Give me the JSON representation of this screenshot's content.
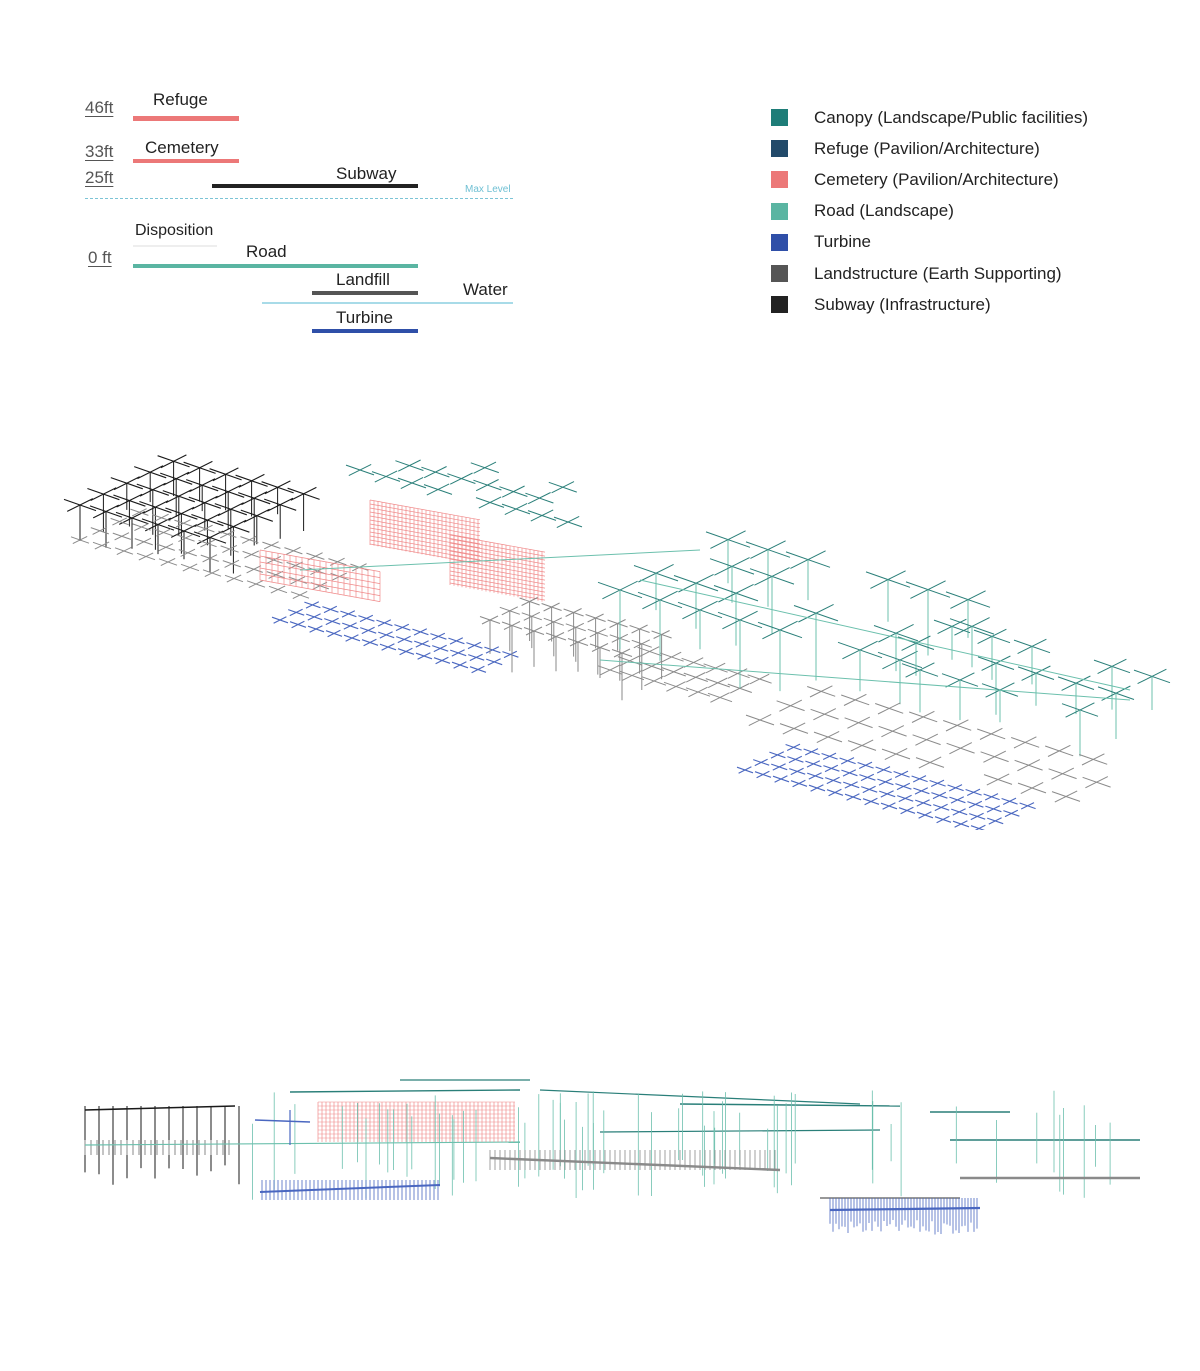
{
  "levels": {
    "l46": "46ft",
    "l33": "33ft",
    "l25": "25ft",
    "l0": "0 ft"
  },
  "bars": {
    "refuge": "Refuge",
    "cemetery": "Cemetery",
    "subway": "Subway",
    "disposition": "Disposition",
    "road": "Road",
    "landfill": "Landfill",
    "water": "Water",
    "turbine": "Turbine",
    "max_level": "Max Level"
  },
  "legend": [
    {
      "label": "Canopy (Landscape/Public facilities)",
      "color": "#1e7d78"
    },
    {
      "label": "Refuge (Pavilion/Architecture)",
      "color": "#224a6a"
    },
    {
      "label": "Cemetery (Pavilion/Architecture)",
      "color": "#ec7878"
    },
    {
      "label": "Road (Landscape)",
      "color": "#5ab5a2"
    },
    {
      "label": "Turbine",
      "color": "#2f4fa8"
    },
    {
      "label": "Landstructure (Earth Supporting)",
      "color": "#555555"
    },
    {
      "label": "Subway (Infrastructure)",
      "color": "#222222"
    }
  ],
  "colors": {
    "refuge_bar": "#ec7878",
    "cemetery_bar": "#ec7878",
    "subway_bar": "#222222",
    "road_bar": "#5ab5a2",
    "landfill_bar": "#555555",
    "water_bar": "#a8dbe8",
    "turbine_bar": "#2f4fa8",
    "subway_line": "#1a1a1a",
    "landstructure_line": "#8a8a8a",
    "cemetery_line": "#f08a8a",
    "canopy_line": "#2a7f79",
    "road_line": "#6cc0ad",
    "turbine_line": "#4a67c0"
  }
}
